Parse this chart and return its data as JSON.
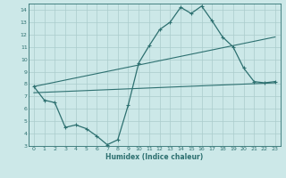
{
  "xlabel": "Humidex (Indice chaleur)",
  "bg_color": "#cce8e8",
  "grid_color": "#aacccc",
  "line_color": "#2d7070",
  "ylim": [
    3,
    14.5
  ],
  "xlim": [
    -0.5,
    23.5
  ],
  "yticks": [
    3,
    4,
    5,
    6,
    7,
    8,
    9,
    10,
    11,
    12,
    13,
    14
  ],
  "xticks": [
    0,
    1,
    2,
    3,
    4,
    5,
    6,
    7,
    8,
    9,
    10,
    11,
    12,
    13,
    14,
    15,
    16,
    17,
    18,
    19,
    20,
    21,
    22,
    23
  ],
  "line1_x": [
    0,
    1,
    2,
    3,
    4,
    5,
    6,
    7,
    8,
    9,
    10,
    11,
    12,
    13,
    14,
    15,
    16,
    17,
    18,
    19,
    20,
    21,
    22,
    23
  ],
  "line1_y": [
    7.8,
    6.7,
    6.5,
    4.5,
    4.7,
    4.4,
    3.8,
    3.1,
    3.5,
    6.3,
    9.7,
    11.1,
    12.4,
    13.0,
    14.2,
    13.7,
    14.3,
    13.1,
    11.8,
    11.0,
    9.3,
    8.2,
    8.1,
    8.2
  ],
  "line2_x": [
    0,
    23
  ],
  "line2_y": [
    7.8,
    11.8
  ],
  "line3_x": [
    0,
    23
  ],
  "line3_y": [
    7.3,
    8.1
  ]
}
